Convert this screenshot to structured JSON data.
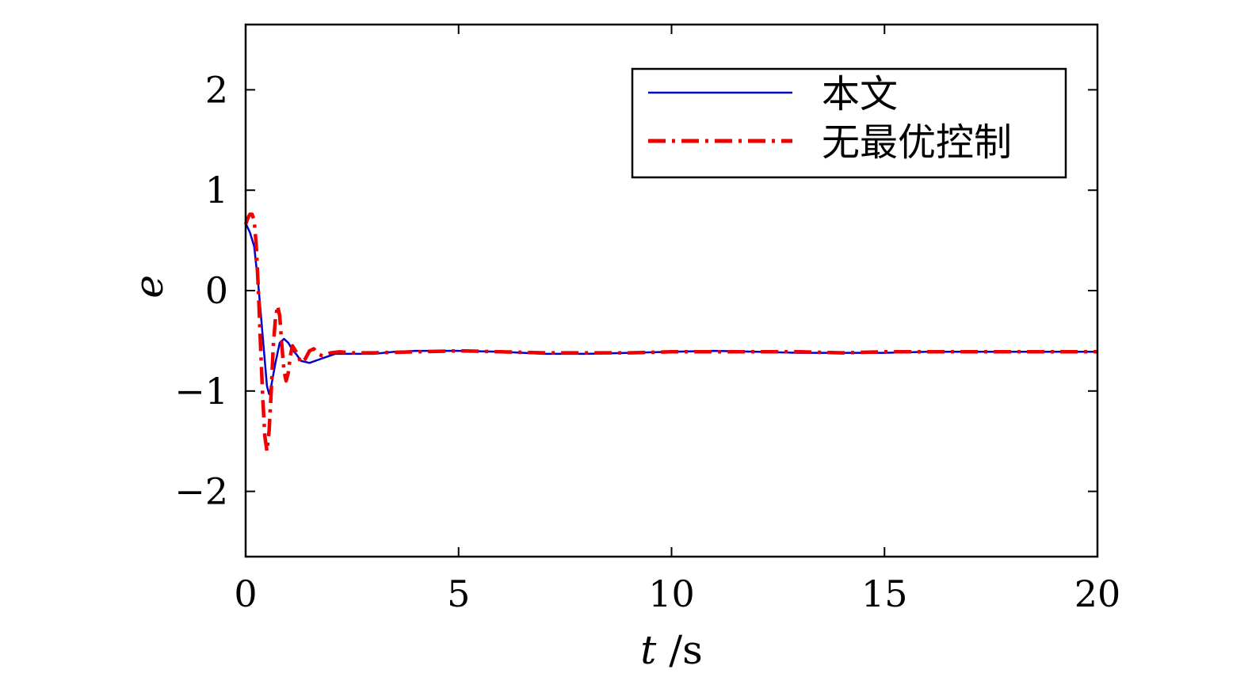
{
  "chart_data": {
    "type": "line",
    "title": "",
    "xlabel_var": "t",
    "xlabel_unit": " /s",
    "ylabel": "e",
    "xlim": [
      0,
      20
    ],
    "ylim": [
      -2.65,
      2.65
    ],
    "xticks": [
      0,
      5,
      10,
      15,
      20
    ],
    "xtick_labels": [
      "0",
      "5",
      "10",
      "15",
      "20"
    ],
    "yticks": [
      -2,
      -1,
      0,
      1,
      2
    ],
    "ytick_labels": [
      "−2",
      "−1",
      "0",
      "1",
      "2"
    ],
    "grid": false,
    "legend_position": "top-right",
    "series": [
      {
        "name": "本文",
        "color": "#0000cc",
        "style": "solid",
        "x": [
          0,
          0.1,
          0.2,
          0.3,
          0.4,
          0.5,
          0.55,
          0.6,
          0.7,
          0.8,
          0.9,
          1.0,
          1.1,
          1.2,
          1.3,
          1.5,
          1.7,
          1.9,
          2.1,
          2.3,
          2.6,
          3.0,
          3.5,
          4.0,
          5.0,
          6.0,
          7.0,
          8.0,
          9.0,
          10.0,
          11.0,
          12.0,
          13.0,
          14.0,
          15.0,
          16.0,
          17.0,
          18.0,
          19.0,
          20.0
        ],
        "y": [
          0.67,
          0.58,
          0.44,
          0.05,
          -0.45,
          -0.95,
          -1.03,
          -0.95,
          -0.72,
          -0.52,
          -0.48,
          -0.52,
          -0.59,
          -0.64,
          -0.7,
          -0.72,
          -0.69,
          -0.66,
          -0.63,
          -0.63,
          -0.63,
          -0.63,
          -0.61,
          -0.6,
          -0.6,
          -0.61,
          -0.63,
          -0.63,
          -0.62,
          -0.61,
          -0.6,
          -0.61,
          -0.62,
          -0.62,
          -0.62,
          -0.61,
          -0.61,
          -0.61,
          -0.61,
          -0.61
        ]
      },
      {
        "name": "无最优控制",
        "color": "#ee0000",
        "style": "dashdot",
        "x": [
          0,
          0.05,
          0.1,
          0.15,
          0.2,
          0.25,
          0.3,
          0.35,
          0.4,
          0.45,
          0.5,
          0.55,
          0.6,
          0.65,
          0.7,
          0.75,
          0.8,
          0.85,
          0.9,
          0.95,
          1.0,
          1.05,
          1.1,
          1.2,
          1.3,
          1.4,
          1.5,
          1.6,
          1.7,
          1.8,
          2.0,
          2.2,
          2.5,
          3.0,
          4.0,
          5.0,
          6.0,
          7.0,
          8.0,
          9.0,
          10.0,
          11.0,
          12.0,
          13.0,
          14.0,
          15.0,
          16.0,
          17.0,
          18.0,
          19.0,
          20.0
        ],
        "y": [
          0.66,
          0.72,
          0.76,
          0.76,
          0.7,
          0.45,
          0.0,
          -0.55,
          -1.05,
          -1.45,
          -1.6,
          -1.4,
          -1.0,
          -0.55,
          -0.28,
          -0.15,
          -0.25,
          -0.55,
          -0.8,
          -0.9,
          -0.82,
          -0.65,
          -0.55,
          -0.62,
          -0.72,
          -0.68,
          -0.6,
          -0.58,
          -0.63,
          -0.65,
          -0.62,
          -0.61,
          -0.62,
          -0.62,
          -0.61,
          -0.6,
          -0.61,
          -0.62,
          -0.62,
          -0.62,
          -0.61,
          -0.61,
          -0.61,
          -0.61,
          -0.62,
          -0.61,
          -0.61,
          -0.61,
          -0.61,
          -0.61,
          -0.61
        ]
      }
    ]
  }
}
